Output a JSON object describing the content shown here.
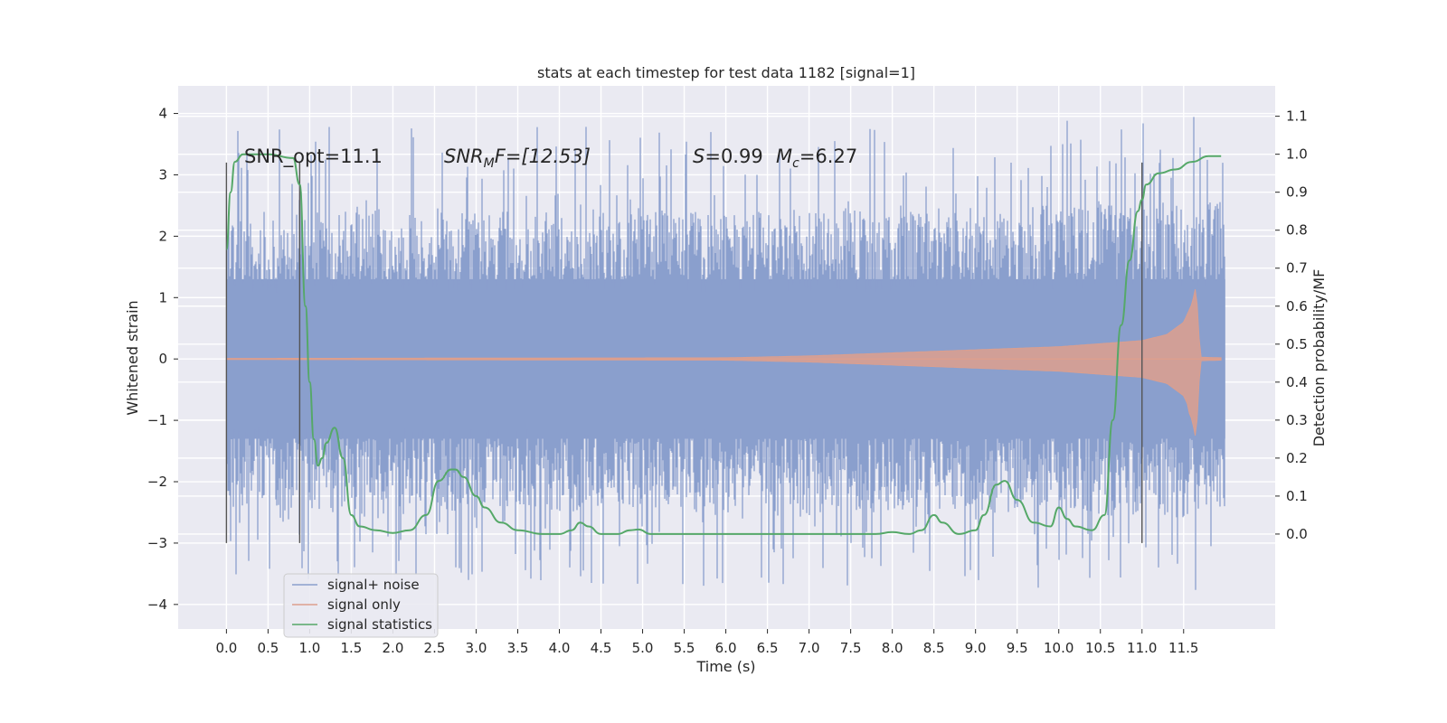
{
  "chart_data": {
    "type": "line",
    "title": "stats at each timestep for test data 1182 [signal=1]",
    "xlabel": "Time (s)",
    "ylabel": "Whitened strain",
    "y2label": "Detection probability/MF",
    "xlim": [
      -0.58,
      12.6
    ],
    "ylim": [
      -4.4,
      4.45
    ],
    "y2lim": [
      -0.25,
      1.18
    ],
    "x_ticks": [
      0.0,
      0.5,
      1.0,
      1.5,
      2.0,
      2.5,
      3.0,
      3.5,
      4.0,
      4.5,
      5.0,
      5.5,
      6.0,
      6.5,
      7.0,
      7.5,
      8.0,
      8.5,
      9.0,
      9.5,
      10.0,
      10.5,
      11.0,
      11.5
    ],
    "x_tick_labels": [
      "0.0",
      "0.5",
      "1.0",
      "1.5",
      "2.0",
      "2.5",
      "3.0",
      "3.5",
      "4.0",
      "4.5",
      "5.0",
      "5.5",
      "6.0",
      "6.5",
      "7.0",
      "7.5",
      "8.0",
      "8.5",
      "9.0",
      "9.5",
      "10.0",
      "10.5",
      "11.0",
      "11.5"
    ],
    "y_ticks": [
      -4,
      -3,
      -2,
      -1,
      0,
      1,
      2,
      3,
      4
    ],
    "y_tick_labels": [
      "−4",
      "−3",
      "−2",
      "−1",
      "0",
      "1",
      "2",
      "3",
      "4"
    ],
    "y2_ticks": [
      0.0,
      0.1,
      0.2,
      0.3,
      0.4,
      0.5,
      0.6,
      0.7,
      0.8,
      0.9,
      1.0,
      1.1
    ],
    "y2_tick_labels": [
      "0.0",
      "0.1",
      "0.2",
      "0.3",
      "0.4",
      "0.5",
      "0.6",
      "0.7",
      "0.8",
      "0.9",
      "1.0",
      "1.1"
    ],
    "grid": true,
    "legend_placement": "lower-left",
    "annotations": {
      "snr_opt": "SNR_opt=11.1",
      "snr_mf_symbol": "SNR",
      "snr_mf_sub": "M",
      "snr_mf_rest": "F=[12.53]",
      "s_symbol": "S",
      "s_rest": "=0.99",
      "mc_symbol": "M",
      "mc_sub": "c",
      "mc_rest": "=6.27"
    },
    "vertical_markers": [
      {
        "x": 0.0,
        "y_range": [
          -3.0,
          3.2
        ]
      },
      {
        "x": 0.88,
        "y_range": [
          -3.0,
          3.2
        ]
      },
      {
        "x": 11.0,
        "y_range": [
          -3.0,
          3.2
        ]
      }
    ],
    "series": [
      {
        "name": "signal+ noise",
        "color": "#8a9fcd",
        "description_axis": "left",
        "envelope": {
          "x": [
            0.0,
            1.0,
            2.0,
            3.0,
            4.0,
            5.0,
            6.0,
            7.0,
            8.0,
            9.0,
            10.0,
            11.0,
            12.0
          ],
          "upper_typical": [
            2.4,
            2.4,
            2.45,
            2.4,
            2.4,
            2.4,
            2.4,
            2.45,
            2.4,
            2.5,
            2.5,
            2.6,
            2.6
          ],
          "lower_typical": [
            -2.4,
            -2.5,
            -2.5,
            -2.5,
            -2.5,
            -2.5,
            -2.5,
            -2.5,
            -2.5,
            -2.5,
            -2.6,
            -2.6,
            -2.6
          ],
          "peak_max": 4.1,
          "peak_min": -3.9
        }
      },
      {
        "name": "signal only",
        "color": "#dd9f8d",
        "description_axis": "left",
        "x": [
          0.0,
          6.0,
          7.0,
          8.0,
          9.0,
          10.0,
          10.5,
          11.0,
          11.3,
          11.5,
          11.6,
          11.65,
          11.7,
          11.95
        ],
        "amplitude": [
          0.01,
          0.02,
          0.05,
          0.1,
          0.15,
          0.2,
          0.25,
          0.3,
          0.4,
          0.6,
          0.9,
          1.2,
          0.03,
          0.02
        ]
      },
      {
        "name": "signal statistics",
        "color": "#55a868",
        "description_axis": "right",
        "x": [
          0.0,
          0.05,
          0.1,
          0.2,
          0.5,
          0.8,
          0.88,
          0.95,
          1.0,
          1.05,
          1.1,
          1.15,
          1.2,
          1.3,
          1.4,
          1.5,
          1.6,
          1.8,
          2.0,
          2.2,
          2.4,
          2.55,
          2.7,
          2.75,
          2.85,
          3.0,
          3.1,
          3.3,
          3.5,
          3.8,
          4.0,
          4.15,
          4.25,
          4.35,
          4.5,
          4.7,
          4.85,
          4.95,
          5.1,
          5.3,
          6.0,
          6.5,
          7.0,
          7.5,
          7.8,
          8.0,
          8.2,
          8.35,
          8.5,
          8.6,
          8.8,
          9.0,
          9.1,
          9.25,
          9.35,
          9.5,
          9.7,
          9.9,
          10.0,
          10.1,
          10.2,
          10.4,
          10.55,
          10.65,
          10.75,
          10.85,
          10.95,
          11.0,
          11.05,
          11.2,
          11.4,
          11.6,
          11.8,
          11.95
        ],
        "y": [
          0.75,
          0.9,
          0.98,
          1.0,
          1.0,
          0.99,
          0.92,
          0.6,
          0.4,
          0.25,
          0.18,
          0.2,
          0.24,
          0.28,
          0.2,
          0.05,
          0.02,
          0.01,
          0.003,
          0.01,
          0.05,
          0.14,
          0.17,
          0.17,
          0.15,
          0.1,
          0.07,
          0.03,
          0.01,
          0.0,
          0.0,
          0.01,
          0.03,
          0.02,
          0.0,
          0.0,
          0.01,
          0.012,
          0.0,
          0.0,
          0.0,
          0.0,
          0.0,
          0.0,
          0.0,
          0.005,
          0.0,
          0.01,
          0.05,
          0.03,
          0.0,
          0.01,
          0.05,
          0.13,
          0.14,
          0.09,
          0.03,
          0.02,
          0.07,
          0.04,
          0.02,
          0.01,
          0.05,
          0.3,
          0.55,
          0.72,
          0.85,
          0.88,
          0.92,
          0.95,
          0.96,
          0.98,
          0.995,
          0.995
        ]
      }
    ]
  }
}
